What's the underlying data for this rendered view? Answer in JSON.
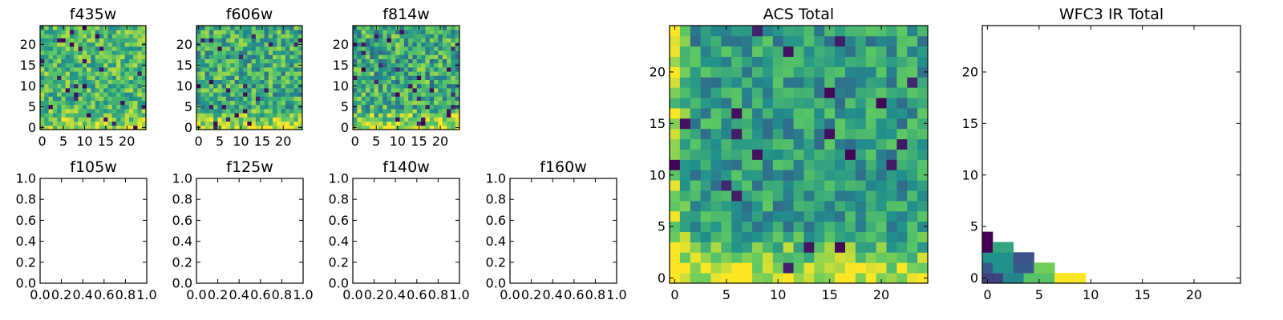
{
  "figure": {
    "colormap": "viridis",
    "colormap_stops": [
      "#440154",
      "#3b528b",
      "#21918c",
      "#5ec962",
      "#fde725"
    ]
  },
  "chart_data": [
    {
      "id": "f435w",
      "type": "heatmap",
      "title": "f435w",
      "nx": 25,
      "ny": 25,
      "seed": 11,
      "mean": 0.68,
      "spread": 0.45,
      "bottom_boost": 0.15,
      "xlim": [
        -0.5,
        24.5
      ],
      "ylim": [
        -0.5,
        24.5
      ],
      "xticks": [
        0,
        5,
        10,
        15,
        20
      ],
      "yticks": [
        0,
        5,
        10,
        15,
        20
      ],
      "xticklabels": [
        "0",
        "5",
        "10",
        "15",
        "20"
      ],
      "yticklabels": [
        "0",
        "5",
        "10",
        "15",
        "20"
      ]
    },
    {
      "id": "f606w",
      "type": "heatmap",
      "title": "f606w",
      "nx": 25,
      "ny": 25,
      "seed": 23,
      "mean": 0.62,
      "spread": 0.5,
      "bottom_boost": 0.3,
      "xlim": [
        -0.5,
        24.5
      ],
      "ylim": [
        -0.5,
        24.5
      ],
      "xticks": [
        0,
        5,
        10,
        15,
        20
      ],
      "yticks": [
        0,
        5,
        10,
        15,
        20
      ],
      "xticklabels": [
        "0",
        "5",
        "10",
        "15",
        "20"
      ],
      "yticklabels": [
        "0",
        "5",
        "10",
        "15",
        "20"
      ]
    },
    {
      "id": "f814w",
      "type": "heatmap",
      "title": "f814w",
      "nx": 25,
      "ny": 25,
      "seed": 37,
      "mean": 0.6,
      "spread": 0.55,
      "bottom_boost": 0.35,
      "xlim": [
        -0.5,
        24.5
      ],
      "ylim": [
        -0.5,
        24.5
      ],
      "xticks": [
        0,
        5,
        10,
        15,
        20
      ],
      "yticks": [
        0,
        5,
        10,
        15,
        20
      ],
      "xticklabels": [
        "0",
        "5",
        "10",
        "15",
        "20"
      ],
      "yticklabels": [
        "0",
        "5",
        "10",
        "15",
        "20"
      ]
    },
    {
      "id": "f105w",
      "type": "heatmap",
      "title": "f105w",
      "empty": true,
      "xlim": [
        0,
        1
      ],
      "ylim": [
        0,
        1
      ],
      "xticks": [
        0,
        0.2,
        0.4,
        0.6,
        0.8,
        1.0
      ],
      "yticks": [
        0,
        0.2,
        0.4,
        0.6,
        0.8,
        1.0
      ],
      "xticklabels": [
        "0.0",
        "0.2",
        "0.4",
        "0.6",
        "0.8",
        "1.0"
      ],
      "yticklabels": [
        "0.0",
        "0.2",
        "0.4",
        "0.6",
        "0.8",
        "1.0"
      ]
    },
    {
      "id": "f125w",
      "type": "heatmap",
      "title": "f125w",
      "empty": true,
      "xlim": [
        0,
        1
      ],
      "ylim": [
        0,
        1
      ],
      "xticks": [
        0,
        0.2,
        0.4,
        0.6,
        0.8,
        1.0
      ],
      "yticks": [
        0,
        0.2,
        0.4,
        0.6,
        0.8,
        1.0
      ],
      "xticklabels": [
        "0.0",
        "0.2",
        "0.4",
        "0.6",
        "0.8",
        "1.0"
      ],
      "yticklabels": [
        "0.0",
        "0.2",
        "0.4",
        "0.6",
        "0.8",
        "1.0"
      ]
    },
    {
      "id": "f140w",
      "type": "heatmap",
      "title": "f140w",
      "empty": true,
      "xlim": [
        0,
        1
      ],
      "ylim": [
        0,
        1
      ],
      "xticks": [
        0,
        0.2,
        0.4,
        0.6,
        0.8,
        1.0
      ],
      "yticks": [
        0,
        0.2,
        0.4,
        0.6,
        0.8,
        1.0
      ],
      "xticklabels": [
        "0.0",
        "0.2",
        "0.4",
        "0.6",
        "0.8",
        "1.0"
      ],
      "yticklabels": [
        "0.0",
        "0.2",
        "0.4",
        "0.6",
        "0.8",
        "1.0"
      ]
    },
    {
      "id": "f160w",
      "type": "heatmap",
      "title": "f160w",
      "empty": true,
      "xlim": [
        0,
        1
      ],
      "ylim": [
        0,
        1
      ],
      "xticks": [
        0,
        0.2,
        0.4,
        0.6,
        0.8,
        1.0
      ],
      "yticks": [
        0,
        0.2,
        0.4,
        0.6,
        0.8,
        1.0
      ],
      "xticklabels": [
        "0.0",
        "0.2",
        "0.4",
        "0.6",
        "0.8",
        "1.0"
      ],
      "yticklabels": [
        "0.0",
        "0.2",
        "0.4",
        "0.6",
        "0.8",
        "1.0"
      ]
    },
    {
      "id": "acs-total",
      "type": "heatmap",
      "title": "ACS Total",
      "nx": 25,
      "ny": 25,
      "seed": 53,
      "mean": 0.55,
      "spread": 0.4,
      "bottom_boost": 0.4,
      "left_boost": 0.3,
      "xlim": [
        -0.5,
        24.5
      ],
      "ylim": [
        -0.5,
        24.5
      ],
      "xticks": [
        0,
        5,
        10,
        15,
        20
      ],
      "yticks": [
        0,
        5,
        10,
        15,
        20
      ],
      "xticklabels": [
        "0",
        "5",
        "10",
        "15",
        "20"
      ],
      "yticklabels": [
        "0",
        "5",
        "10",
        "15",
        "20"
      ]
    },
    {
      "id": "wfc3-ir-total",
      "type": "heatmap",
      "title": "WFC3 IR Total",
      "nx": 25,
      "ny": 25,
      "sparse": true,
      "xlim": [
        -0.5,
        24.5
      ],
      "ylim": [
        -0.5,
        24.5
      ],
      "xticks": [
        0,
        5,
        10,
        15,
        20
      ],
      "yticks": [
        0,
        5,
        10,
        15,
        20
      ],
      "xticklabels": [
        "0",
        "5",
        "10",
        "15",
        "20"
      ],
      "yticklabels": [
        "0",
        "5",
        "10",
        "15",
        "20"
      ],
      "cells": [
        {
          "x": 0,
          "y": 0,
          "v": 0.2
        },
        {
          "x": 1,
          "y": 0,
          "v": 0.2
        },
        {
          "x": 2,
          "y": 0,
          "v": 0.45
        },
        {
          "x": 3,
          "y": 0,
          "v": 0.45
        },
        {
          "x": 4,
          "y": 0,
          "v": 0.72
        },
        {
          "x": 5,
          "y": 0,
          "v": 0.72
        },
        {
          "x": 6,
          "y": 0,
          "v": 0.72
        },
        {
          "x": 7,
          "y": 0,
          "v": 1.0
        },
        {
          "x": 8,
          "y": 0,
          "v": 1.0
        },
        {
          "x": 9,
          "y": 0,
          "v": 1.0
        },
        {
          "x": 0,
          "y": 1,
          "v": 0.28
        },
        {
          "x": 1,
          "y": 1,
          "v": 0.5
        },
        {
          "x": 2,
          "y": 1,
          "v": 0.5
        },
        {
          "x": 3,
          "y": 1,
          "v": 0.28
        },
        {
          "x": 4,
          "y": 1,
          "v": 0.28
        },
        {
          "x": 5,
          "y": 1,
          "v": 0.78
        },
        {
          "x": 6,
          "y": 1,
          "v": 0.78
        },
        {
          "x": 0,
          "y": 2,
          "v": 0.5
        },
        {
          "x": 1,
          "y": 2,
          "v": 0.5
        },
        {
          "x": 2,
          "y": 2,
          "v": 0.5
        },
        {
          "x": 3,
          "y": 2,
          "v": 0.25
        },
        {
          "x": 4,
          "y": 2,
          "v": 0.25
        },
        {
          "x": 0,
          "y": 3,
          "v": 0.0
        },
        {
          "x": 1,
          "y": 3,
          "v": 0.58
        },
        {
          "x": 2,
          "y": 3,
          "v": 0.58
        },
        {
          "x": 0,
          "y": 4,
          "v": 0.0
        }
      ]
    }
  ]
}
